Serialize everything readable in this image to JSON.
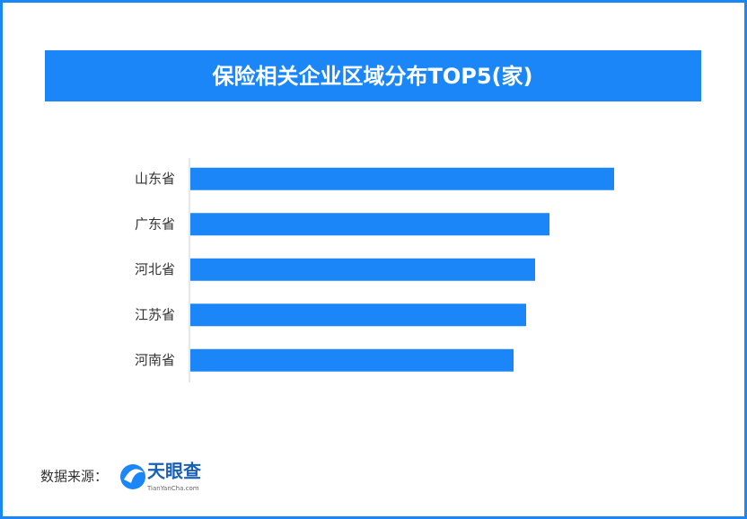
{
  "chart_data": {
    "type": "bar",
    "orientation": "horizontal",
    "title": "保险相关企业区域分布TOP5(家)",
    "categories": [
      "山东省",
      "广东省",
      "河北省",
      "江苏省",
      "河南省"
    ],
    "values": [
      472,
      400,
      384,
      374,
      360
    ],
    "color": "#1a86f7"
  },
  "footer": {
    "source_label": "数据来源：",
    "logo_name": "天眼查",
    "logo_url": "TianYanCha.com"
  }
}
